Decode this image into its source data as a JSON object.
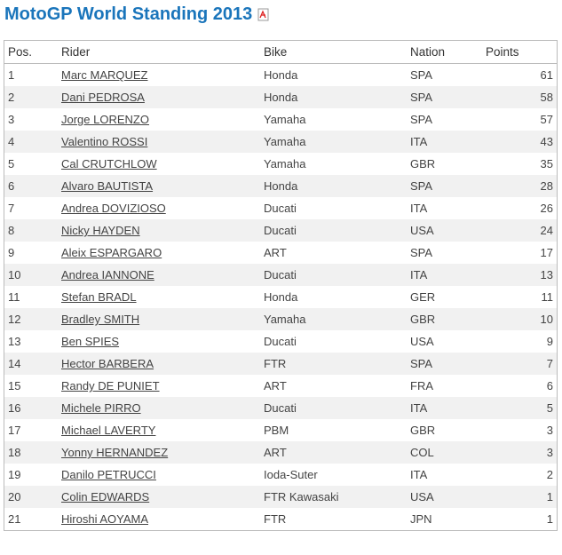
{
  "header": {
    "title": "MotoGP World Standing 2013"
  },
  "table": {
    "columns": [
      "Pos.",
      "Rider",
      "Bike",
      "Nation",
      "Points"
    ],
    "rows": [
      [
        1,
        "Marc MARQUEZ",
        "Honda",
        "SPA",
        61
      ],
      [
        2,
        "Dani PEDROSA",
        "Honda",
        "SPA",
        58
      ],
      [
        3,
        "Jorge LORENZO",
        "Yamaha",
        "SPA",
        57
      ],
      [
        4,
        "Valentino ROSSI",
        "Yamaha",
        "ITA",
        43
      ],
      [
        5,
        "Cal CRUTCHLOW",
        "Yamaha",
        "GBR",
        35
      ],
      [
        6,
        "Alvaro BAUTISTA",
        "Honda",
        "SPA",
        28
      ],
      [
        7,
        "Andrea DOVIZIOSO",
        "Ducati",
        "ITA",
        26
      ],
      [
        8,
        "Nicky HAYDEN",
        "Ducati",
        "USA",
        24
      ],
      [
        9,
        "Aleix ESPARGARO",
        "ART",
        "SPA",
        17
      ],
      [
        10,
        "Andrea IANNONE",
        "Ducati",
        "ITA",
        13
      ],
      [
        11,
        "Stefan BRADL",
        "Honda",
        "GER",
        11
      ],
      [
        12,
        "Bradley SMITH",
        "Yamaha",
        "GBR",
        10
      ],
      [
        13,
        "Ben SPIES",
        "Ducati",
        "USA",
        9
      ],
      [
        14,
        "Hector BARBERA",
        "FTR",
        "SPA",
        7
      ],
      [
        15,
        "Randy DE PUNIET",
        "ART",
        "FRA",
        6
      ],
      [
        16,
        "Michele PIRRO",
        "Ducati",
        "ITA",
        5
      ],
      [
        17,
        "Michael LAVERTY",
        "PBM",
        "GBR",
        3
      ],
      [
        18,
        "Yonny HERNANDEZ",
        "ART",
        "COL",
        3
      ],
      [
        19,
        "Danilo PETRUCCI",
        "Ioda-Suter",
        "ITA",
        2
      ],
      [
        20,
        "Colin EDWARDS",
        "FTR Kawasaki",
        "USA",
        1
      ],
      [
        21,
        "Hiroshi AOYAMA",
        "FTR",
        "JPN",
        1
      ]
    ]
  }
}
